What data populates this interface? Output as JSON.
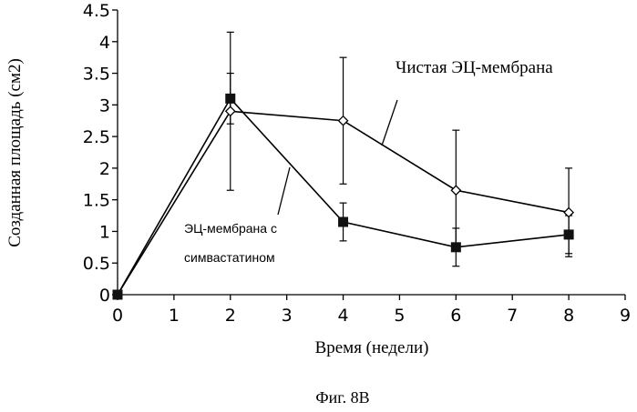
{
  "chart_data": {
    "type": "line",
    "title": "",
    "xlabel": "Время (недели)",
    "ylabel": "Созданная площадь (см2)",
    "xlim": [
      0,
      9
    ],
    "ylim": [
      0,
      4.5
    ],
    "x_ticks": [
      "0",
      "1",
      "2",
      "3",
      "4",
      "5",
      "6",
      "7",
      "8",
      "9"
    ],
    "y_ticks": [
      "0",
      "0.5",
      "1",
      "1.5",
      "2",
      "2.5",
      "3",
      "3.5",
      "4",
      "4.5"
    ],
    "grid": false,
    "series": [
      {
        "name": "Чистая ЭЦ-мембрана",
        "marker": "diamond-open",
        "x": [
          0,
          2,
          4,
          6,
          8
        ],
        "y": [
          0,
          2.9,
          2.75,
          1.65,
          1.3
        ],
        "error": [
          0,
          1.25,
          1.0,
          0.95,
          0.7
        ]
      },
      {
        "name": "ЭЦ-мембрана с симвастатином",
        "marker": "square-filled",
        "x": [
          0,
          2,
          4,
          6,
          8
        ],
        "y": [
          0,
          3.1,
          1.15,
          0.75,
          0.95
        ],
        "error": [
          0,
          0.4,
          0.3,
          0.3,
          0.3
        ]
      }
    ],
    "annotations": {
      "pure": "Чистая ЭЦ-мембрана",
      "statin_line1": "ЭЦ-мембрана с",
      "statin_line2": "симвастатином"
    }
  },
  "caption": "Фиг. 8В"
}
